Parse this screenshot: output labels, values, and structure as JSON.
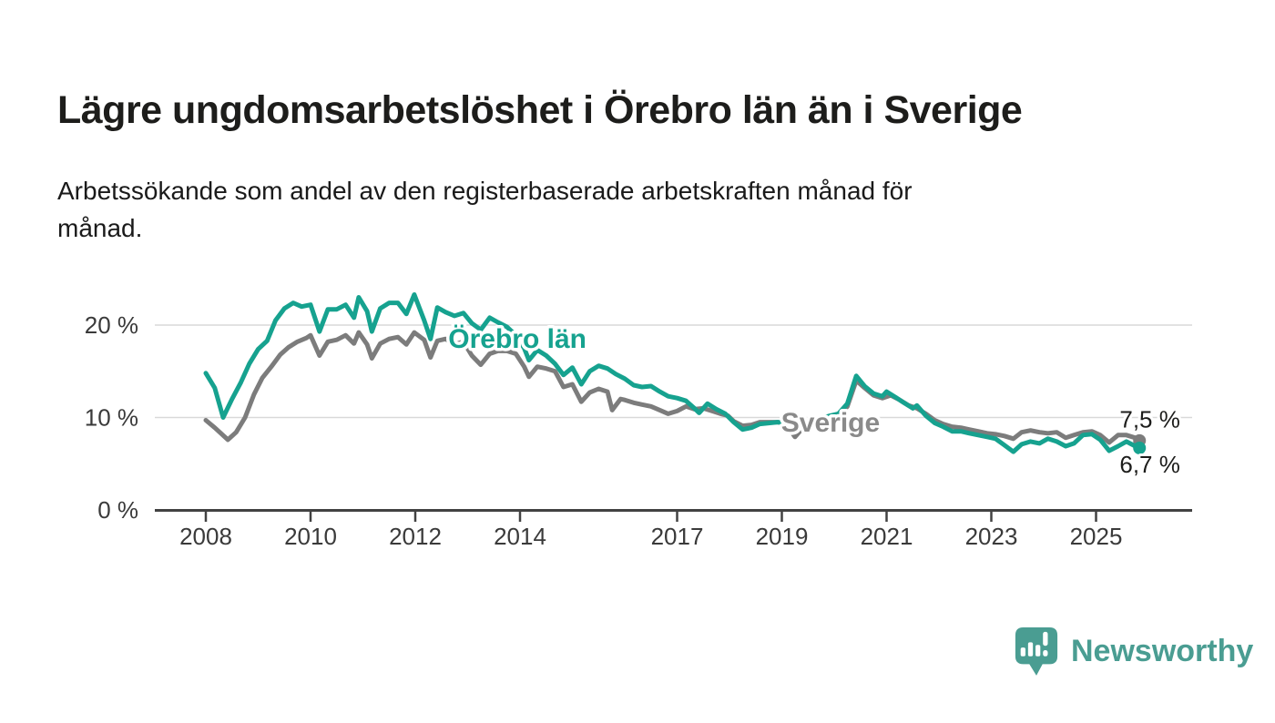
{
  "header": {
    "title": "Lägre ungdomsarbetslöshet i Örebro län än i Sverige",
    "subtitle": "Arbetssökande som andel av den registerbaserade arbetskraften månad för\nmånad."
  },
  "footer": {
    "brand": "Newsworthy",
    "brand_color": "#4a9d92",
    "logo_icon": "newsworthy-speech-bubble-bar-chart-icon"
  },
  "chart_data": {
    "type": "line",
    "title": "Lägre ungdomsarbetslöshet i Örebro län än i Sverige",
    "subtitle": "Arbetssökande som andel av den registerbaserade arbetskraften månad för månad.",
    "grid": "horizontal gridlines at 10 % and 20 %",
    "legend_position": "inline labels on lines",
    "x_axis": {
      "unit": "year (monthly data)",
      "range": [
        2008.0,
        2025.83
      ],
      "ticks": [
        {
          "year": 2008,
          "label": "2008"
        },
        {
          "year": 2010,
          "label": "2010"
        },
        {
          "year": 2012,
          "label": "2012"
        },
        {
          "year": 2014,
          "label": "2014"
        },
        {
          "year": 2017,
          "label": "2017"
        },
        {
          "year": 2019,
          "label": "2019"
        },
        {
          "year": 2021,
          "label": "2021"
        },
        {
          "year": 2023,
          "label": "2023"
        },
        {
          "year": 2025,
          "label": "2025"
        }
      ]
    },
    "y_axis": {
      "unit": "%",
      "range": [
        0,
        25
      ],
      "gridlines": [
        10,
        20
      ],
      "ticks": [
        {
          "value": 0,
          "label": "0 %"
        },
        {
          "value": 10,
          "label": "10 %"
        },
        {
          "value": 20,
          "label": "20 %"
        }
      ]
    },
    "series": [
      {
        "id": "sverige",
        "name": "Sverige",
        "color": "#7c7c7c",
        "end_value": 7.5,
        "label": {
          "text": "Sverige",
          "year": 2019.93,
          "pct": 8.45,
          "color": "#8a8a8a"
        },
        "end_label": {
          "text": "7,5 %",
          "year": 2025.45,
          "pct": 8.9
        },
        "points": [
          [
            2008.0,
            9.7
          ],
          [
            2008.17,
            8.9
          ],
          [
            2008.42,
            7.6
          ],
          [
            2008.58,
            8.4
          ],
          [
            2008.75,
            10.0
          ],
          [
            2008.92,
            12.5
          ],
          [
            2009.08,
            14.3
          ],
          [
            2009.25,
            15.5
          ],
          [
            2009.42,
            16.8
          ],
          [
            2009.58,
            17.6
          ],
          [
            2009.75,
            18.2
          ],
          [
            2009.92,
            18.6
          ],
          [
            2010.0,
            18.9
          ],
          [
            2010.17,
            16.7
          ],
          [
            2010.33,
            18.2
          ],
          [
            2010.5,
            18.4
          ],
          [
            2010.67,
            18.9
          ],
          [
            2010.83,
            18.0
          ],
          [
            2010.92,
            19.2
          ],
          [
            2011.08,
            17.9
          ],
          [
            2011.17,
            16.4
          ],
          [
            2011.33,
            18.0
          ],
          [
            2011.5,
            18.5
          ],
          [
            2011.67,
            18.7
          ],
          [
            2011.83,
            17.9
          ],
          [
            2011.98,
            19.2
          ],
          [
            2012.17,
            18.4
          ],
          [
            2012.29,
            16.5
          ],
          [
            2012.42,
            18.3
          ],
          [
            2012.58,
            18.5
          ],
          [
            2012.75,
            17.9
          ],
          [
            2012.92,
            18.2
          ],
          [
            2013.08,
            16.7
          ],
          [
            2013.25,
            15.7
          ],
          [
            2013.42,
            16.9
          ],
          [
            2013.58,
            17.2
          ],
          [
            2013.75,
            17.2
          ],
          [
            2013.92,
            16.9
          ],
          [
            2014.08,
            15.5
          ],
          [
            2014.17,
            14.4
          ],
          [
            2014.33,
            15.5
          ],
          [
            2014.5,
            15.3
          ],
          [
            2014.67,
            15.0
          ],
          [
            2014.83,
            13.3
          ],
          [
            2015.0,
            13.6
          ],
          [
            2015.17,
            11.7
          ],
          [
            2015.33,
            12.7
          ],
          [
            2015.5,
            13.1
          ],
          [
            2015.67,
            12.8
          ],
          [
            2015.76,
            10.8
          ],
          [
            2015.92,
            12.0
          ],
          [
            2016.0,
            11.9
          ],
          [
            2016.17,
            11.6
          ],
          [
            2016.33,
            11.4
          ],
          [
            2016.5,
            11.2
          ],
          [
            2016.67,
            10.8
          ],
          [
            2016.83,
            10.4
          ],
          [
            2017.0,
            10.7
          ],
          [
            2017.17,
            11.2
          ],
          [
            2017.33,
            10.9
          ],
          [
            2017.5,
            11.0
          ],
          [
            2017.67,
            10.7
          ],
          [
            2017.83,
            10.4
          ],
          [
            2017.97,
            10.2
          ],
          [
            2018.08,
            9.6
          ],
          [
            2018.25,
            9.1
          ],
          [
            2018.42,
            9.2
          ],
          [
            2018.58,
            9.5
          ],
          [
            2018.75,
            9.5
          ],
          [
            2018.92,
            9.5
          ],
          [
            2019.08,
            9.3
          ],
          [
            2019.25,
            7.9
          ],
          [
            2019.42,
            9.0
          ],
          [
            2019.58,
            9.2
          ],
          [
            2019.75,
            9.6
          ],
          [
            2019.92,
            9.9
          ],
          [
            2020.08,
            10.1
          ],
          [
            2020.25,
            11.2
          ],
          [
            2020.42,
            14.0
          ],
          [
            2020.58,
            13.2
          ],
          [
            2020.75,
            12.4
          ],
          [
            2020.92,
            12.1
          ],
          [
            2021.08,
            12.4
          ],
          [
            2021.25,
            11.9
          ],
          [
            2021.42,
            11.3
          ],
          [
            2021.58,
            11.0
          ],
          [
            2021.75,
            10.4
          ],
          [
            2021.92,
            9.7
          ],
          [
            2022.08,
            9.3
          ],
          [
            2022.25,
            9.0
          ],
          [
            2022.42,
            8.9
          ],
          [
            2022.58,
            8.7
          ],
          [
            2022.75,
            8.5
          ],
          [
            2022.92,
            8.3
          ],
          [
            2023.08,
            8.2
          ],
          [
            2023.25,
            8.0
          ],
          [
            2023.42,
            7.7
          ],
          [
            2023.58,
            8.4
          ],
          [
            2023.75,
            8.6
          ],
          [
            2023.92,
            8.4
          ],
          [
            2024.08,
            8.3
          ],
          [
            2024.25,
            8.4
          ],
          [
            2024.42,
            7.8
          ],
          [
            2024.58,
            8.1
          ],
          [
            2024.75,
            8.4
          ],
          [
            2024.92,
            8.5
          ],
          [
            2025.08,
            8.1
          ],
          [
            2025.25,
            7.3
          ],
          [
            2025.42,
            8.1
          ],
          [
            2025.58,
            8.1
          ],
          [
            2025.75,
            7.8
          ],
          [
            2025.83,
            7.5
          ]
        ]
      },
      {
        "id": "orebro-lan",
        "name": "Örebro län",
        "color": "#16a28f",
        "end_value": 6.7,
        "label": {
          "text": "Örebro län",
          "year": 2013.95,
          "pct": 17.55,
          "color": "#16a28f"
        },
        "end_label": {
          "text": "6,7 %",
          "year": 2025.45,
          "pct": 4.05
        },
        "points": [
          [
            2008.0,
            14.8
          ],
          [
            2008.17,
            13.2
          ],
          [
            2008.33,
            10.0
          ],
          [
            2008.5,
            12.0
          ],
          [
            2008.67,
            13.8
          ],
          [
            2008.83,
            15.8
          ],
          [
            2009.0,
            17.4
          ],
          [
            2009.17,
            18.3
          ],
          [
            2009.33,
            20.5
          ],
          [
            2009.5,
            21.8
          ],
          [
            2009.67,
            22.4
          ],
          [
            2009.83,
            22.0
          ],
          [
            2010.0,
            22.2
          ],
          [
            2010.17,
            19.3
          ],
          [
            2010.33,
            21.7
          ],
          [
            2010.5,
            21.7
          ],
          [
            2010.67,
            22.2
          ],
          [
            2010.83,
            20.8
          ],
          [
            2010.92,
            23.0
          ],
          [
            2011.08,
            21.5
          ],
          [
            2011.17,
            19.3
          ],
          [
            2011.33,
            21.8
          ],
          [
            2011.5,
            22.4
          ],
          [
            2011.67,
            22.4
          ],
          [
            2011.83,
            21.2
          ],
          [
            2011.98,
            23.3
          ],
          [
            2012.17,
            20.5
          ],
          [
            2012.29,
            18.5
          ],
          [
            2012.42,
            21.9
          ],
          [
            2012.58,
            21.4
          ],
          [
            2012.75,
            21.0
          ],
          [
            2012.92,
            21.3
          ],
          [
            2013.08,
            20.2
          ],
          [
            2013.25,
            19.5
          ],
          [
            2013.42,
            20.8
          ],
          [
            2013.58,
            20.3
          ],
          [
            2013.75,
            19.8
          ],
          [
            2013.92,
            18.9
          ],
          [
            2014.08,
            17.5
          ],
          [
            2014.17,
            16.2
          ],
          [
            2014.33,
            17.3
          ],
          [
            2014.5,
            16.7
          ],
          [
            2014.67,
            15.8
          ],
          [
            2014.83,
            14.6
          ],
          [
            2015.0,
            15.4
          ],
          [
            2015.17,
            13.6
          ],
          [
            2015.33,
            15.0
          ],
          [
            2015.5,
            15.6
          ],
          [
            2015.67,
            15.3
          ],
          [
            2015.83,
            14.7
          ],
          [
            2016.0,
            14.2
          ],
          [
            2016.17,
            13.5
          ],
          [
            2016.33,
            13.3
          ],
          [
            2016.5,
            13.4
          ],
          [
            2016.67,
            12.8
          ],
          [
            2016.83,
            12.3
          ],
          [
            2017.0,
            12.1
          ],
          [
            2017.17,
            11.8
          ],
          [
            2017.33,
            11.0
          ],
          [
            2017.42,
            10.5
          ],
          [
            2017.58,
            11.5
          ],
          [
            2017.75,
            10.9
          ],
          [
            2017.92,
            10.4
          ],
          [
            2018.08,
            9.5
          ],
          [
            2018.25,
            8.7
          ],
          [
            2018.42,
            8.9
          ],
          [
            2018.58,
            9.3
          ],
          [
            2018.75,
            9.4
          ],
          [
            2018.92,
            9.5
          ],
          [
            2019.08,
            9.4
          ],
          [
            2019.25,
            8.8
          ],
          [
            2019.42,
            9.2
          ],
          [
            2019.58,
            9.4
          ],
          [
            2019.75,
            9.9
          ],
          [
            2019.92,
            10.2
          ],
          [
            2020.08,
            10.4
          ],
          [
            2020.25,
            11.5
          ],
          [
            2020.42,
            14.5
          ],
          [
            2020.58,
            13.4
          ],
          [
            2020.75,
            12.6
          ],
          [
            2020.92,
            12.3
          ],
          [
            2021.0,
            12.8
          ],
          [
            2021.17,
            12.2
          ],
          [
            2021.33,
            11.6
          ],
          [
            2021.5,
            11.0
          ],
          [
            2021.58,
            11.3
          ],
          [
            2021.75,
            10.2
          ],
          [
            2021.92,
            9.4
          ],
          [
            2022.08,
            9.0
          ],
          [
            2022.25,
            8.5
          ],
          [
            2022.42,
            8.5
          ],
          [
            2022.58,
            8.3
          ],
          [
            2022.75,
            8.1
          ],
          [
            2022.92,
            7.9
          ],
          [
            2023.08,
            7.7
          ],
          [
            2023.25,
            7.0
          ],
          [
            2023.42,
            6.3
          ],
          [
            2023.58,
            7.1
          ],
          [
            2023.75,
            7.4
          ],
          [
            2023.92,
            7.2
          ],
          [
            2024.08,
            7.7
          ],
          [
            2024.25,
            7.4
          ],
          [
            2024.42,
            6.9
          ],
          [
            2024.58,
            7.2
          ],
          [
            2024.75,
            8.1
          ],
          [
            2024.92,
            8.2
          ],
          [
            2025.08,
            7.6
          ],
          [
            2025.25,
            6.4
          ],
          [
            2025.42,
            6.9
          ],
          [
            2025.58,
            7.4
          ],
          [
            2025.75,
            6.9
          ],
          [
            2025.83,
            6.7
          ]
        ]
      }
    ]
  }
}
